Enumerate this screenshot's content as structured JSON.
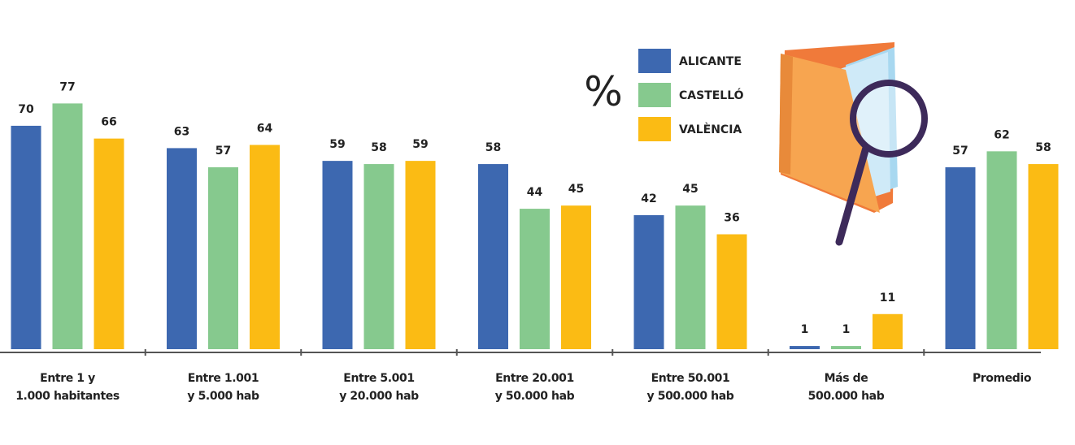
{
  "chart_data": {
    "type": "bar",
    "unit_label": "%",
    "categories": [
      "Entre 1 y\n1.000 habitantes",
      "Entre 1.001\ny 5.000 hab",
      "Entre 5.001\ny 20.000 hab",
      "Entre 20.001\ny 50.000 hab",
      "Entre 50.001\ny 500.000 hab",
      "Más de\n500.000 hab",
      "Promedio"
    ],
    "series": [
      {
        "name": "ALICANTE",
        "color": "#3d68b0",
        "values": [
          70,
          63,
          59,
          58,
          42,
          1,
          57
        ]
      },
      {
        "name": "CASTELLÓ",
        "color": "#86c98e",
        "values": [
          77,
          57,
          58,
          44,
          45,
          1,
          62
        ]
      },
      {
        "name": "VALÈNCIA",
        "color": "#fbbb14",
        "values": [
          66,
          64,
          59,
          45,
          36,
          11,
          58
        ]
      }
    ]
  }
}
